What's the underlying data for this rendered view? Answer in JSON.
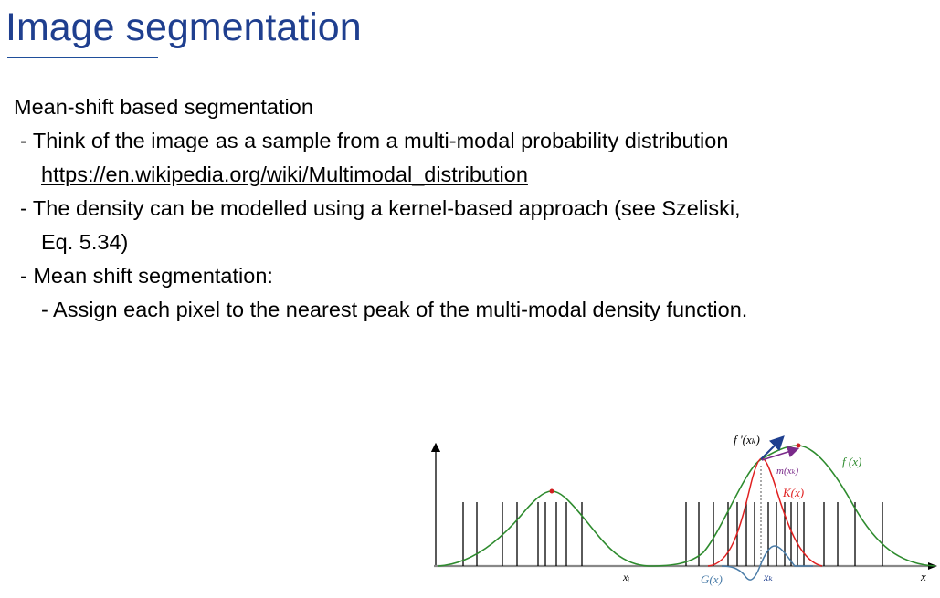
{
  "slide": {
    "title": "Image segmentation",
    "body": {
      "heading": "Mean-shift based segmentation",
      "bullet_1": "- Think of the image as a sample from a multi-modal probability distribution",
      "bullet_1_link": "https://en.wikipedia.org/wiki/Multimodal_distribution",
      "bullet_2_line_1": "- The density can be modelled using a kernel-based approach (see Szeliski,",
      "bullet_2_line_2": "Eq. 5.34)",
      "bullet_3": "- Mean shift segmentation:",
      "sub_bullet_1": "- Assign each pixel to the nearest peak of the multi-modal density function."
    }
  },
  "figure": {
    "labels": {
      "f_prime": "f '(xₖ)",
      "m": "m(xₖ)",
      "f": "f (x)",
      "K": "K(x)",
      "G": "G(x)",
      "x_i": "xᵢ",
      "x_k": "xₖ",
      "x": "x"
    },
    "colors": {
      "density": "#2e8b2e",
      "kernel": "#e02020",
      "derivative_kernel": "#4a7ca8",
      "gradient_arrow": "#1f3f8f",
      "mean_shift_arrow": "#7a2a8a",
      "mode_marker": "#d02020",
      "samples": "#000000",
      "axis": "#000000"
    }
  }
}
